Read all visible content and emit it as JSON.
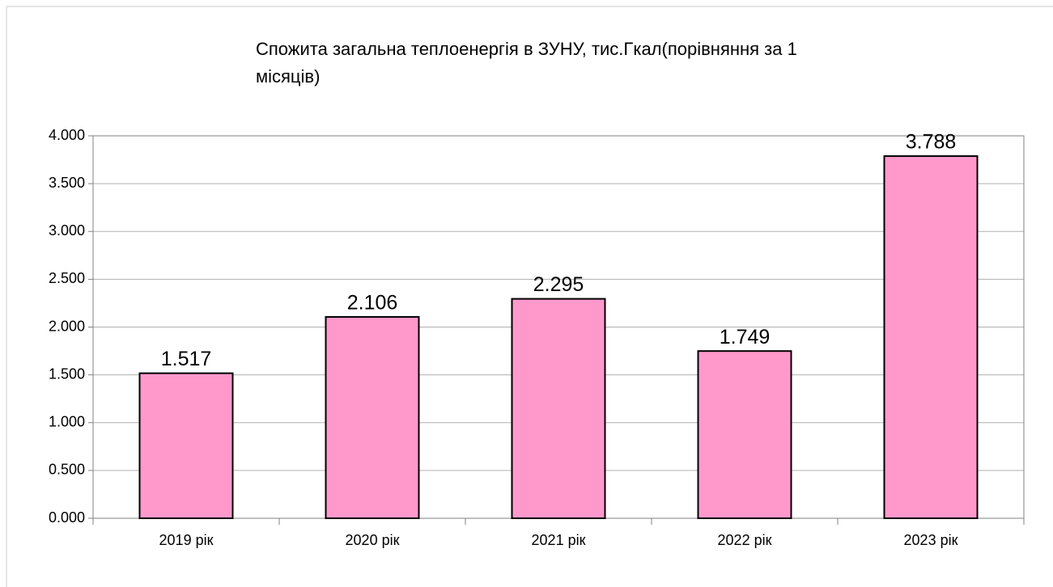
{
  "chart_data": {
    "type": "bar",
    "title": [
      "Спожита загальна теплоенергія в ЗУНУ, тис.Гкал(порівняння за 1",
      "місяців)"
    ],
    "categories": [
      "2019 рік",
      "2020 рік",
      "2021 рік",
      "2022 рік",
      "2023 рік"
    ],
    "values": [
      1.517,
      2.106,
      2.295,
      1.749,
      3.788
    ],
    "color": "#ff99cc",
    "ylim": [
      0,
      4
    ],
    "yticks": [
      {
        "value": 0,
        "label": "0.000"
      },
      {
        "value": 0.5,
        "label": "0.500"
      },
      {
        "value": 1,
        "label": "1.000"
      },
      {
        "value": 1.5,
        "label": "1.500"
      },
      {
        "value": 2,
        "label": "2.000"
      },
      {
        "value": 2.5,
        "label": "2.500"
      },
      {
        "value": 3,
        "label": "3.000"
      },
      {
        "value": 3.5,
        "label": "3.500"
      },
      {
        "value": 4,
        "label": "4.000"
      }
    ],
    "grid": true
  }
}
